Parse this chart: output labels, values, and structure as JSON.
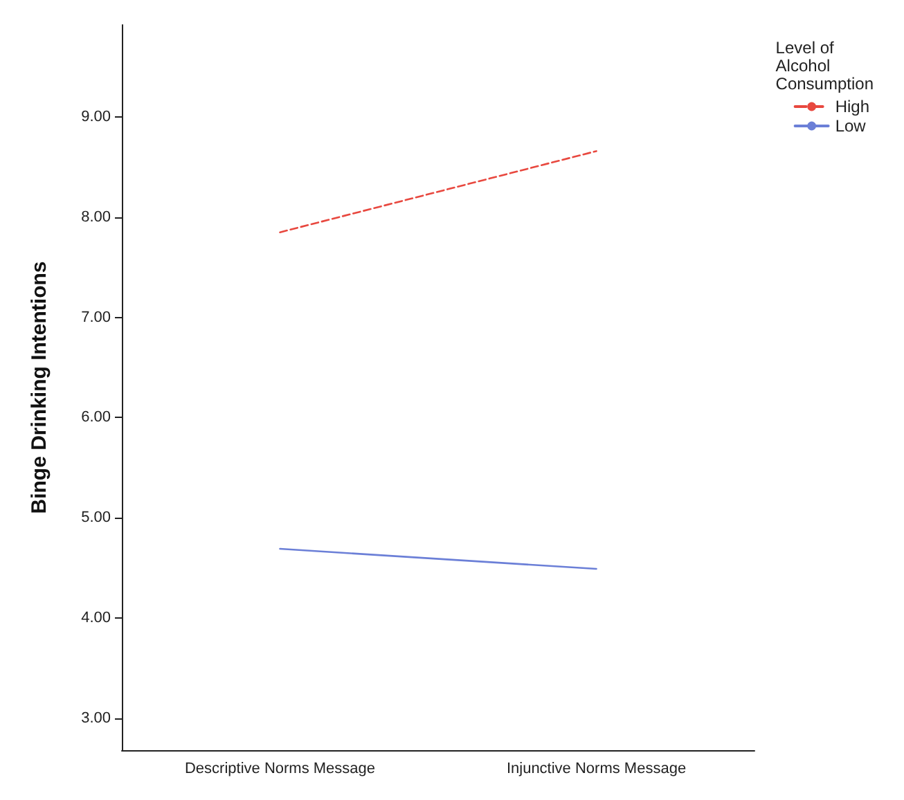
{
  "chart_data": {
    "type": "line",
    "ylabel": "Binge Drinking Intentions",
    "legend_title": "Level of Alcohol Consumption",
    "categories": [
      "Descriptive Norms Message",
      "Injunctive Norms Message"
    ],
    "series": [
      {
        "name": "High",
        "color": "#e8483f",
        "line_style": "dashed",
        "values": [
          7.85,
          8.66
        ]
      },
      {
        "name": "Low",
        "color": "#6b7fd7",
        "line_style": "solid",
        "values": [
          4.69,
          4.49
        ]
      }
    ],
    "ylim": [
      2.68,
      9.92
    ],
    "yticks": [
      {
        "value": 3,
        "label": "3.00"
      },
      {
        "value": 4,
        "label": "4.00"
      },
      {
        "value": 5,
        "label": "5.00"
      },
      {
        "value": 6,
        "label": "6.00"
      },
      {
        "value": 7,
        "label": "7.00"
      },
      {
        "value": 8,
        "label": "8.00"
      },
      {
        "value": 9,
        "label": "9.00"
      }
    ],
    "grid": false,
    "legend": "top right",
    "marker": "none"
  }
}
